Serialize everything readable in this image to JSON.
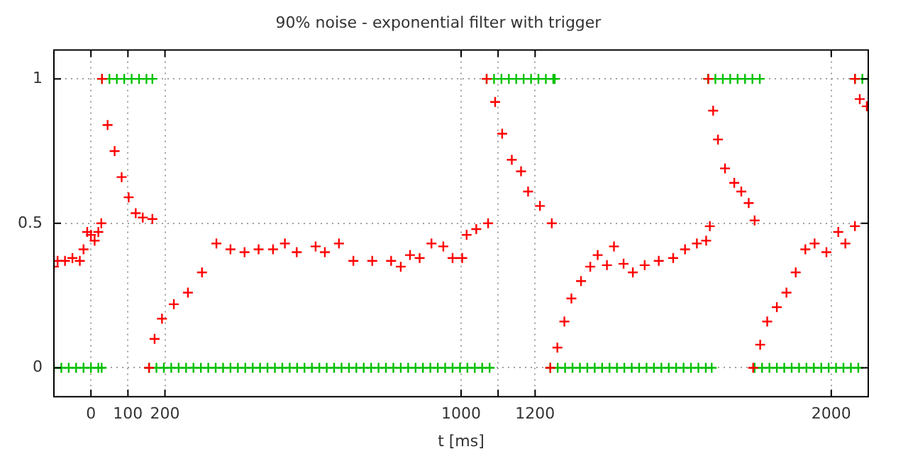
{
  "chart_data": {
    "type": "scatter",
    "title": "90% noise - exponential filter with trigger",
    "xlabel": "t [ms]",
    "xlim": [
      -100,
      2100
    ],
    "ylim": [
      -0.1,
      1.1
    ],
    "xticks": [
      0,
      100,
      200,
      1000,
      {
        "value": 1100,
        "label": null
      },
      1200,
      2000
    ],
    "yticks": [
      0,
      0.5,
      1
    ],
    "grid": true,
    "legend": false,
    "marker": "cross",
    "series": [
      {
        "color": "#ff0000",
        "x": [
          -100,
          -90,
          -70,
          -50,
          -30,
          -20,
          -10,
          0,
          10,
          20,
          28,
          30,
          45,
          64,
          83,
          102,
          121,
          140,
          166,
          157,
          172,
          192,
          224,
          262,
          300,
          339,
          377,
          415,
          453,
          492,
          524,
          556,
          607,
          632,
          670,
          709,
          760,
          811,
          837,
          862,
          888,
          920,
          952,
          977,
          1003,
          1015,
          1041,
          1073,
          1069,
          1092,
          1111,
          1137,
          1162,
          1181,
          1213,
          1245,
          1241,
          1260,
          1279,
          1298,
          1324,
          1349,
          1369,
          1394,
          1413,
          1439,
          1464,
          1496,
          1534,
          1573,
          1605,
          1637,
          1662,
          1672,
          1668,
          1681,
          1694,
          1713,
          1738,
          1757,
          1777,
          1793,
          1789,
          1808,
          1827,
          1853,
          1879,
          1904,
          1930,
          1955,
          1987,
          2019,
          2038,
          2064,
          2064,
          2077,
          2096
        ],
        "values": [
          0.35,
          0.37,
          0.37,
          0.38,
          0.37,
          0.41,
          0.47,
          0.46,
          0.44,
          0.47,
          0.5,
          1.0,
          0.84,
          0.75,
          0.66,
          0.59,
          0.535,
          0.52,
          0.515,
          0,
          0.1,
          0.17,
          0.22,
          0.26,
          0.33,
          0.43,
          0.41,
          0.4,
          0.41,
          0.41,
          0.43,
          0.4,
          0.42,
          0.4,
          0.43,
          0.37,
          0.37,
          0.37,
          0.35,
          0.39,
          0.38,
          0.43,
          0.42,
          0.38,
          0.38,
          0.46,
          0.48,
          0.5,
          1.0,
          0.92,
          0.81,
          0.72,
          0.68,
          0.61,
          0.56,
          0.5,
          0,
          0.07,
          0.16,
          0.24,
          0.3,
          0.35,
          0.39,
          0.355,
          0.42,
          0.36,
          0.33,
          0.355,
          0.37,
          0.38,
          0.41,
          0.43,
          0.44,
          0.49,
          1.0,
          0.89,
          0.79,
          0.69,
          0.64,
          0.61,
          0.57,
          0.51,
          0,
          0.08,
          0.16,
          0.21,
          0.26,
          0.33,
          0.41,
          0.43,
          0.4,
          0.47,
          0.43,
          0.49,
          1.0,
          0.93,
          0.905
        ]
      },
      {
        "color": "#00c000",
        "x": [
          -100,
          -80,
          -60,
          -40,
          -20,
          0,
          20,
          29,
          30,
          50,
          70,
          90,
          110,
          130,
          150,
          166,
          157,
          177,
          197,
          217,
          237,
          257,
          277,
          297,
          317,
          337,
          357,
          377,
          397,
          417,
          437,
          457,
          477,
          497,
          517,
          537,
          557,
          577,
          597,
          617,
          637,
          657,
          677,
          697,
          717,
          737,
          757,
          777,
          797,
          817,
          837,
          857,
          877,
          897,
          917,
          937,
          957,
          977,
          997,
          1017,
          1037,
          1057,
          1077,
          1069,
          1089,
          1109,
          1129,
          1149,
          1169,
          1189,
          1209,
          1229,
          1249,
          1253,
          1241,
          1261,
          1281,
          1301,
          1321,
          1341,
          1361,
          1381,
          1401,
          1421,
          1441,
          1461,
          1481,
          1501,
          1521,
          1541,
          1561,
          1581,
          1601,
          1621,
          1641,
          1661,
          1677,
          1667,
          1687,
          1707,
          1727,
          1747,
          1767,
          1787,
          1807,
          1793,
          1813,
          1833,
          1853,
          1873,
          1893,
          1913,
          1933,
          1953,
          1973,
          1993,
          2013,
          2033,
          2053,
          2073,
          2064,
          2084,
          2100
        ],
        "values": [
          0,
          0,
          0,
          0,
          0,
          0,
          0,
          0,
          1,
          1,
          1,
          1,
          1,
          1,
          1,
          1,
          0,
          0,
          0,
          0,
          0,
          0,
          0,
          0,
          0,
          0,
          0,
          0,
          0,
          0,
          0,
          0,
          0,
          0,
          0,
          0,
          0,
          0,
          0,
          0,
          0,
          0,
          0,
          0,
          0,
          0,
          0,
          0,
          0,
          0,
          0,
          0,
          0,
          0,
          0,
          0,
          0,
          0,
          0,
          0,
          0,
          0,
          0,
          1,
          1,
          1,
          1,
          1,
          1,
          1,
          1,
          1,
          1,
          1,
          0,
          0,
          0,
          0,
          0,
          0,
          0,
          0,
          0,
          0,
          0,
          0,
          0,
          0,
          0,
          0,
          0,
          0,
          0,
          0,
          0,
          0,
          0,
          1,
          1,
          1,
          1,
          1,
          1,
          1,
          1,
          0,
          0,
          0,
          0,
          0,
          0,
          0,
          0,
          0,
          0,
          0,
          0,
          0,
          0,
          0,
          1,
          1,
          1
        ]
      }
    ]
  }
}
